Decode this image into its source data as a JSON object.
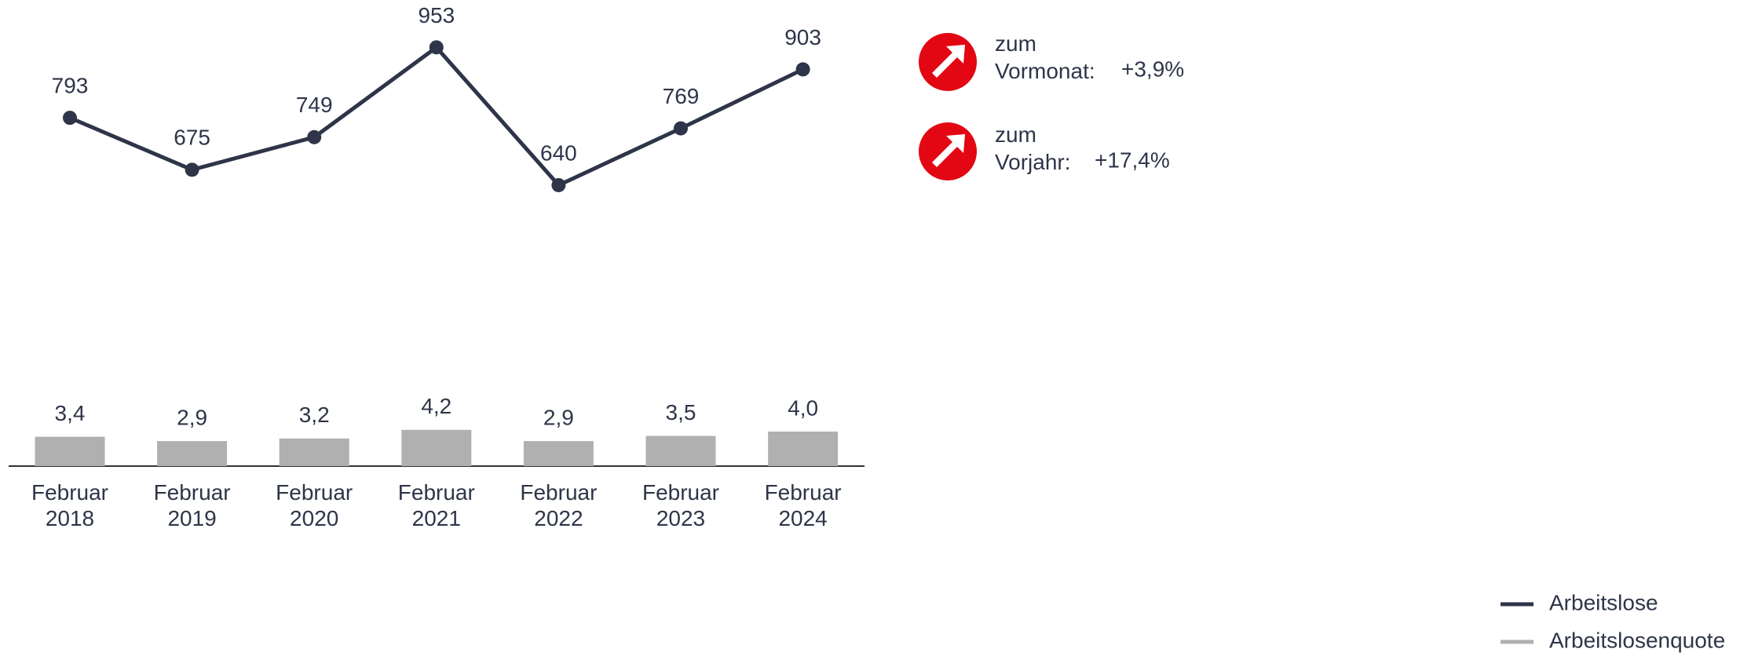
{
  "chart_data": {
    "type": "bar",
    "categories": [
      "Februar 2018",
      "Februar 2019",
      "Februar 2020",
      "Februar 2021",
      "Februar 2022",
      "Februar 2023",
      "Februar 2024"
    ],
    "series": [
      {
        "name": "Arbeitslose",
        "type": "line",
        "color": "#2e3548",
        "values": [
          793,
          675,
          749,
          953,
          640,
          769,
          903
        ]
      },
      {
        "name": "Arbeitslosenquote",
        "type": "bar",
        "color": "#b0b0b0",
        "values": [
          3.4,
          2.9,
          3.2,
          4.2,
          2.9,
          3.5,
          4.0
        ],
        "value_labels": [
          "3,4",
          "2,9",
          "3,2",
          "4,2",
          "2,9",
          "3,5",
          "4,0"
        ]
      }
    ],
    "annotations": [
      {
        "text": "zum Vormonat:",
        "value": "+3,9%"
      },
      {
        "text": "zum Vorjahr:",
        "value": "+17,4%"
      }
    ]
  }
}
